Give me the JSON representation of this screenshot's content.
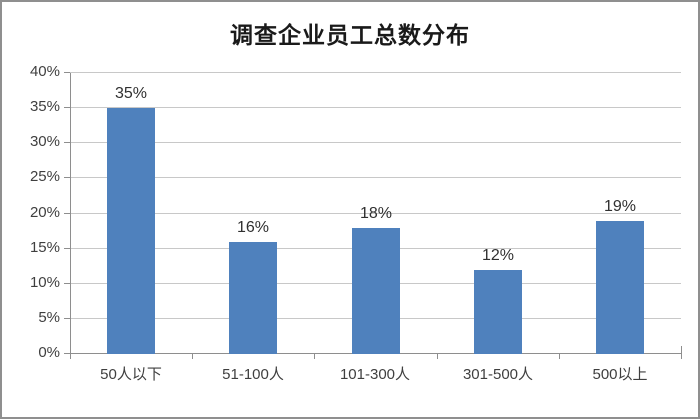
{
  "title": "调查企业员工总数分布",
  "chart_data": {
    "type": "bar",
    "title": "调查企业员工总数分布",
    "categories": [
      "50人以下",
      "51-100人",
      "101-300人",
      "301-500人",
      "500以上"
    ],
    "values": [
      35,
      16,
      18,
      12,
      19
    ],
    "data_labels": [
      "35%",
      "16%",
      "18%",
      "12%",
      "19%"
    ],
    "xlabel": "",
    "ylabel": "",
    "ylim": [
      0,
      40
    ],
    "ytick_step": 5,
    "ytick_labels": [
      "0%",
      "5%",
      "10%",
      "15%",
      "20%",
      "25%",
      "30%",
      "35%",
      "40%"
    ],
    "grid": true,
    "legend": false
  },
  "colors": {
    "bar": "#4f81bd",
    "gridline": "#c8c8c8",
    "axis": "#8e8e8e",
    "text": "#3f3f3f",
    "frame_border": "#8f8f8f",
    "background": "#ffffff"
  }
}
